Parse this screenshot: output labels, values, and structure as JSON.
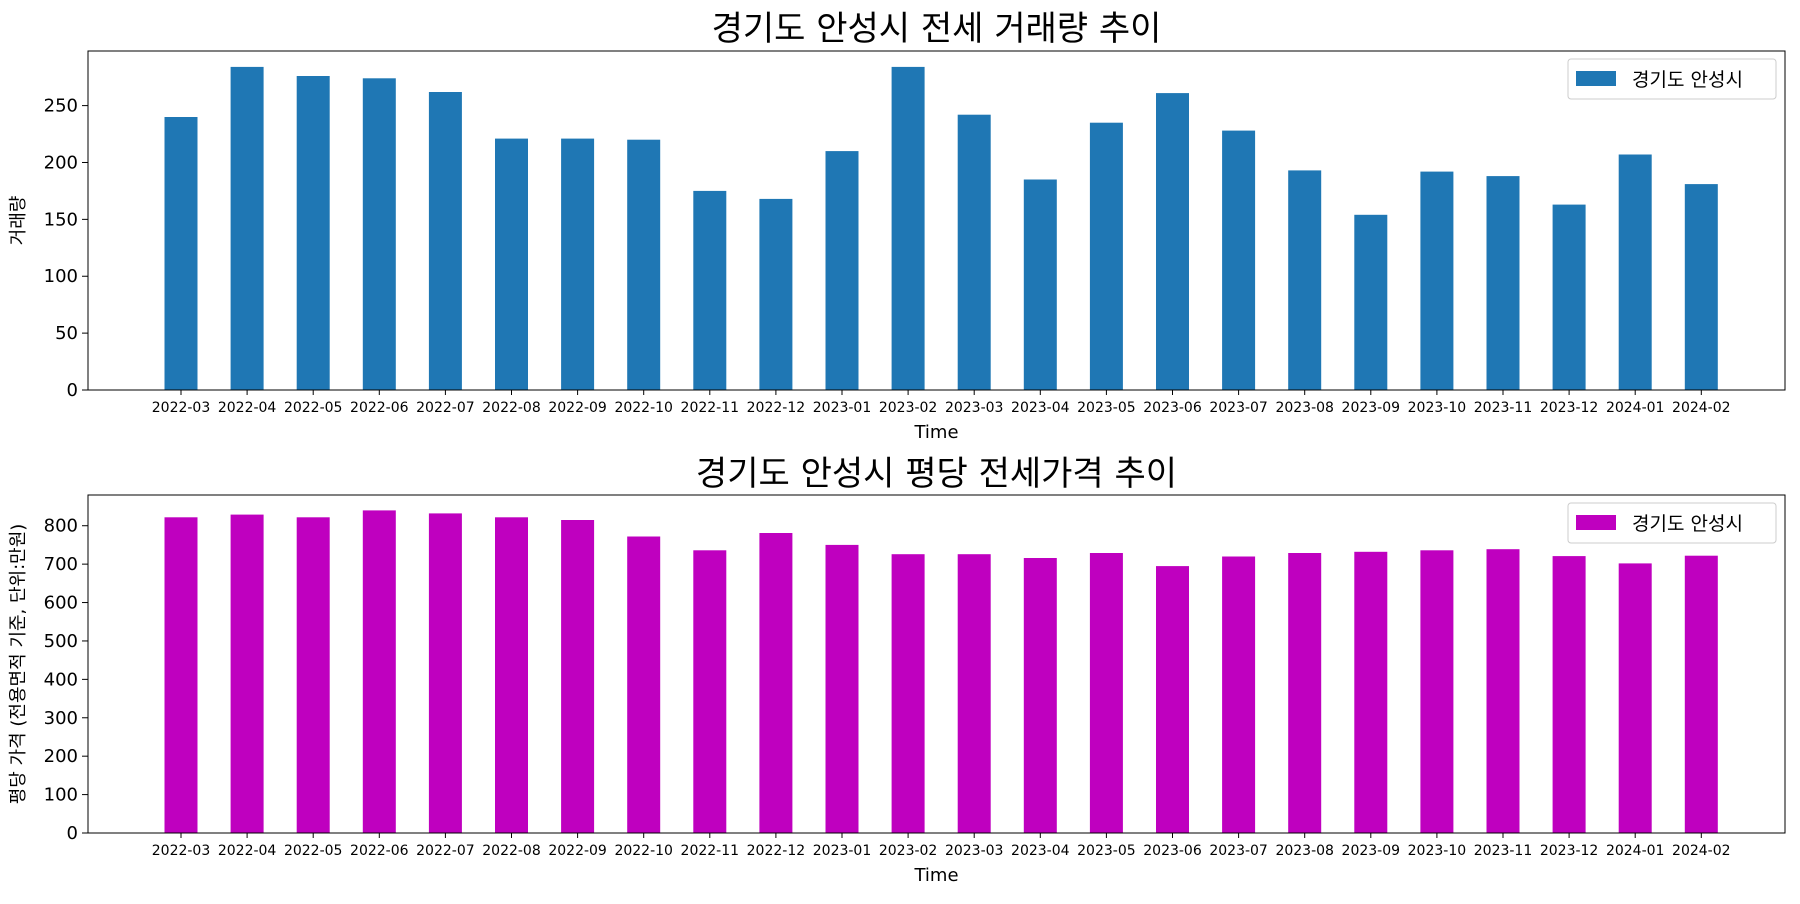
{
  "chart_data": [
    {
      "type": "bar",
      "title": "경기도 안성시 전세 거래량 추이",
      "xlabel": "Time",
      "ylabel": "거래량",
      "ylim": [
        0,
        298
      ],
      "yticks": [
        0,
        50,
        100,
        150,
        200,
        250
      ],
      "legend_position": "top-right",
      "grid": false,
      "categories": [
        "2022-03",
        "2022-04",
        "2022-05",
        "2022-06",
        "2022-07",
        "2022-08",
        "2022-09",
        "2022-10",
        "2022-11",
        "2022-12",
        "2023-01",
        "2023-02",
        "2023-03",
        "2023-04",
        "2023-05",
        "2023-06",
        "2023-07",
        "2023-08",
        "2023-09",
        "2023-10",
        "2023-11",
        "2023-12",
        "2024-01",
        "2024-02"
      ],
      "series": [
        {
          "name": "경기도 안성시",
          "color": "#1f77b4",
          "values": [
            240,
            284,
            276,
            274,
            262,
            221,
            221,
            220,
            175,
            168,
            210,
            284,
            242,
            185,
            235,
            261,
            228,
            193,
            154,
            192,
            188,
            163,
            207,
            181
          ]
        }
      ]
    },
    {
      "type": "bar",
      "title": "경기도 안성시 평당 전세가격 추이",
      "xlabel": "Time",
      "ylabel": "평당 가격 (전용면적 기준, 단위:만원)",
      "ylim": [
        0,
        880
      ],
      "yticks": [
        0,
        100,
        200,
        300,
        400,
        500,
        600,
        700,
        800
      ],
      "legend_position": "top-right",
      "grid": false,
      "categories": [
        "2022-03",
        "2022-04",
        "2022-05",
        "2022-06",
        "2022-07",
        "2022-08",
        "2022-09",
        "2022-10",
        "2022-11",
        "2022-12",
        "2023-01",
        "2023-02",
        "2023-03",
        "2023-04",
        "2023-05",
        "2023-06",
        "2023-07",
        "2023-08",
        "2023-09",
        "2023-10",
        "2023-11",
        "2023-12",
        "2024-01",
        "2024-02"
      ],
      "series": [
        {
          "name": "경기도 안성시",
          "color": "#bf00bf",
          "values": [
            822,
            829,
            822,
            840,
            832,
            822,
            815,
            772,
            736,
            781,
            750,
            726,
            726,
            716,
            729,
            695,
            720,
            729,
            732,
            736,
            739,
            721,
            702,
            722
          ]
        }
      ]
    }
  ]
}
